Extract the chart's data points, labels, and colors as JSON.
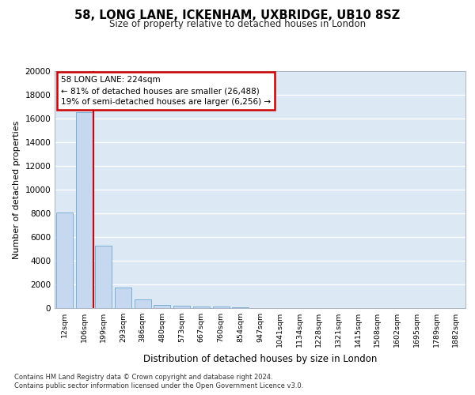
{
  "title": "58, LONG LANE, ICKENHAM, UXBRIDGE, UB10 8SZ",
  "subtitle": "Size of property relative to detached houses in London",
  "xlabel": "Distribution of detached houses by size in London",
  "ylabel": "Number of detached properties",
  "categories": [
    "12sqm",
    "106sqm",
    "199sqm",
    "293sqm",
    "386sqm",
    "480sqm",
    "573sqm",
    "667sqm",
    "760sqm",
    "854sqm",
    "947sqm",
    "1041sqm",
    "1134sqm",
    "1228sqm",
    "1321sqm",
    "1415sqm",
    "1508sqm",
    "1602sqm",
    "1695sqm",
    "1789sqm",
    "1882sqm"
  ],
  "values": [
    8100,
    16500,
    5300,
    1750,
    750,
    300,
    200,
    150,
    120,
    80,
    0,
    0,
    0,
    0,
    0,
    0,
    0,
    0,
    0,
    0,
    0
  ],
  "bar_color": "#c5d8f0",
  "bar_edge_color": "#7bafd4",
  "marker_label": "58 LONG LANE: 224sqm",
  "annotation_line1": "← 81% of detached houses are smaller (26,488)",
  "annotation_line2": "19% of semi-detached houses are larger (6,256) →",
  "vline_color": "#cc0000",
  "annotation_box_facecolor": "#ffffff",
  "annotation_box_edgecolor": "#cc0000",
  "background_color": "#dde8f5",
  "grid_color": "#ffffff",
  "footer_line1": "Contains HM Land Registry data © Crown copyright and database right 2024.",
  "footer_line2": "Contains public sector information licensed under the Open Government Licence v3.0.",
  "ylim": [
    0,
    20000
  ],
  "yticks": [
    0,
    2000,
    4000,
    6000,
    8000,
    10000,
    12000,
    14000,
    16000,
    18000,
    20000
  ],
  "vline_x": 1.5
}
